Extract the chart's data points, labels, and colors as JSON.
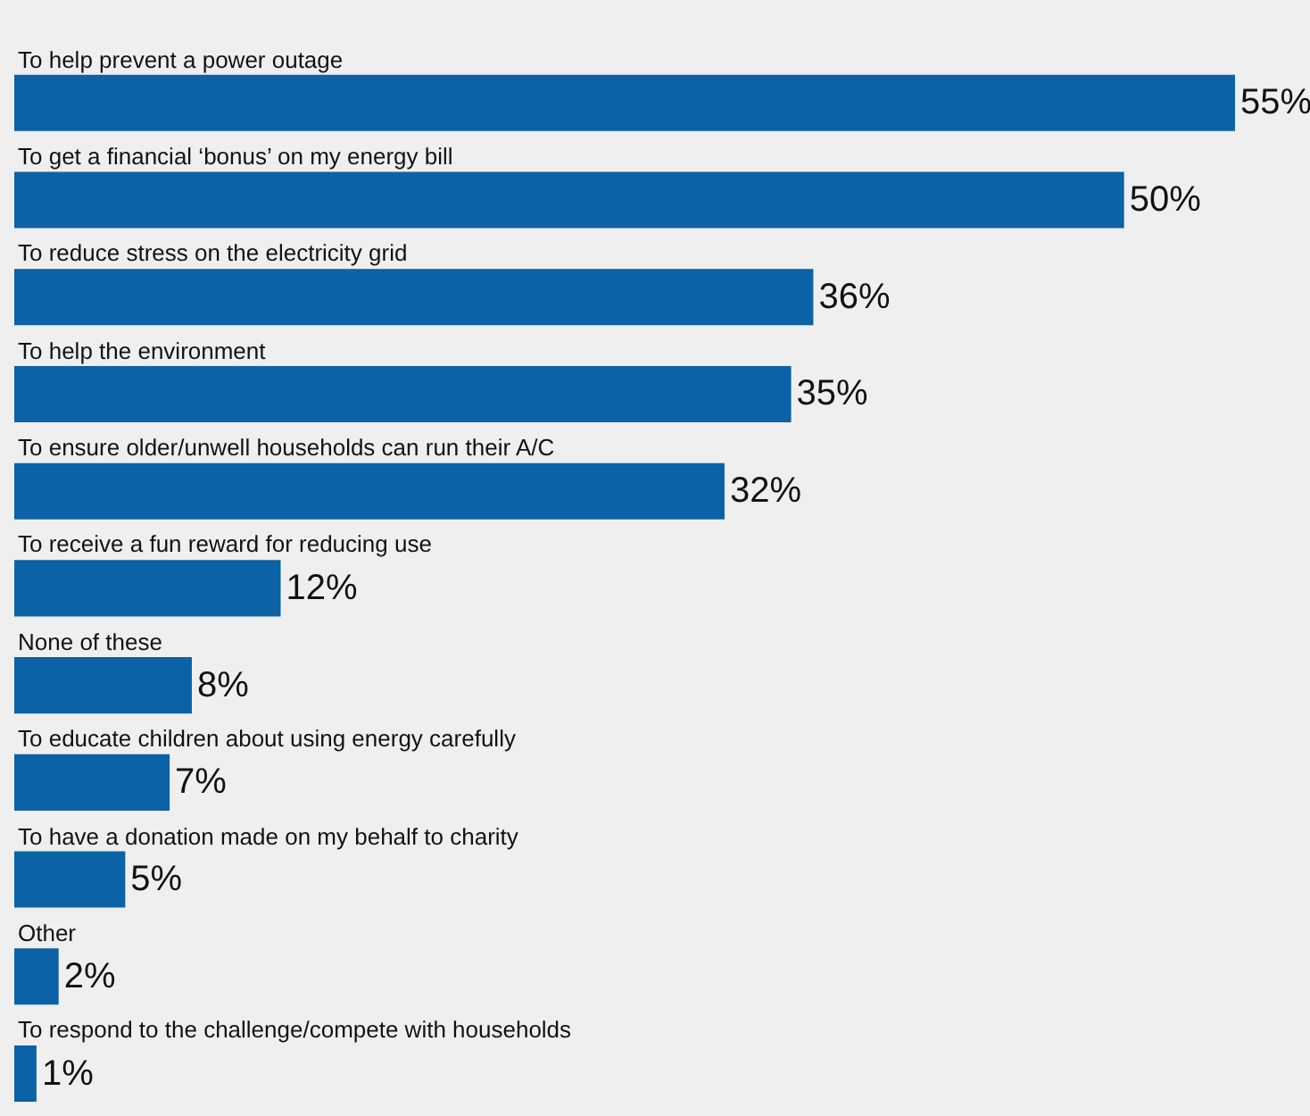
{
  "chart_data": {
    "type": "bar",
    "orientation": "horizontal",
    "categories": [
      "To help prevent a power outage",
      "To get a financial ‘bonus’ on my energy bill",
      "To reduce stress on the electricity grid",
      "To help the environment",
      "To ensure older/unwell households can run their A/C",
      "To receive a fun reward for reducing use",
      "None of these",
      "To educate children about using energy carefully",
      "To have a donation made on my behalf to charity",
      "Other",
      "To respond to the challenge/compete with households"
    ],
    "values": [
      55,
      50,
      36,
      35,
      32,
      12,
      8,
      7,
      5,
      2,
      1
    ],
    "value_labels": [
      "55%",
      "50%",
      "36%",
      "35%",
      "32%",
      "12%",
      "8%",
      "7%",
      "5%",
      "2%",
      "1%"
    ],
    "color": "#0b62a6",
    "grid": false,
    "legend": false
  }
}
